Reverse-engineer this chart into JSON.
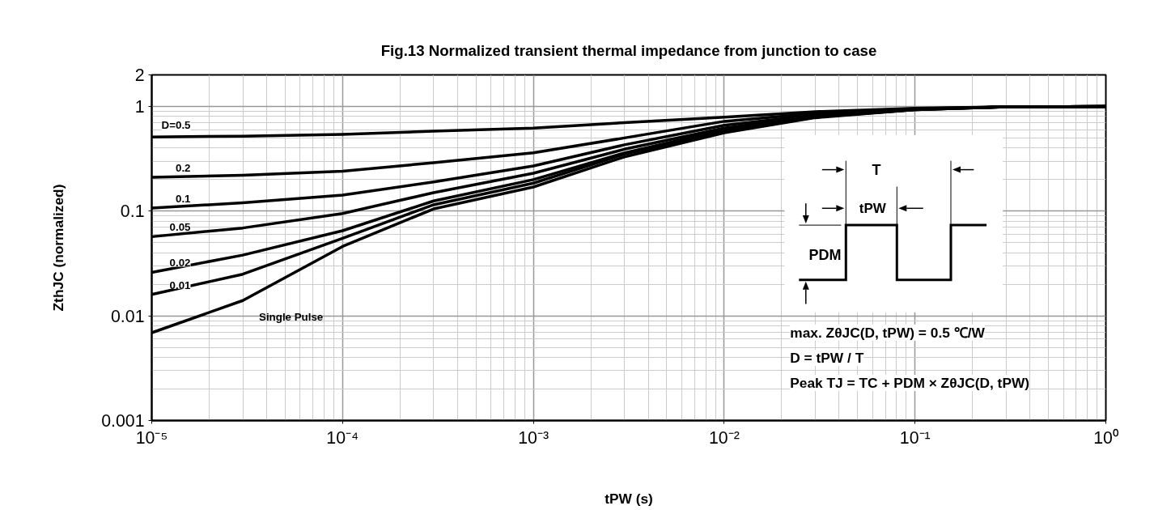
{
  "chart_data": {
    "type": "line",
    "title": "Fig.13 Normalized transient thermal impedance from junction to case",
    "xlabel": "tPW (s)",
    "ylabel": "ZthJC (normalized)",
    "x": [
      1e-05,
      3e-05,
      0.0001,
      0.0003,
      0.001,
      0.003,
      0.01,
      0.03,
      0.1,
      0.3,
      1
    ],
    "series": [
      {
        "name": "D=0.5",
        "color": "#000000",
        "values": [
          0.51,
          0.52,
          0.54,
          0.58,
          0.62,
          0.7,
          0.79,
          0.89,
          0.96,
          0.99,
          1.0
        ]
      },
      {
        "name": "0.2",
        "color": "#000000",
        "values": [
          0.21,
          0.22,
          0.24,
          0.29,
          0.36,
          0.5,
          0.72,
          0.86,
          0.95,
          0.99,
          1.0
        ]
      },
      {
        "name": "0.1",
        "color": "#000000",
        "values": [
          0.107,
          0.12,
          0.142,
          0.19,
          0.27,
          0.43,
          0.66,
          0.83,
          0.94,
          0.99,
          1.0
        ]
      },
      {
        "name": "0.05",
        "color": "#000000",
        "values": [
          0.057,
          0.069,
          0.095,
          0.15,
          0.23,
          0.39,
          0.62,
          0.81,
          0.94,
          0.99,
          1.0
        ]
      },
      {
        "name": "0.02",
        "color": "#000000",
        "values": [
          0.026,
          0.038,
          0.065,
          0.125,
          0.2,
          0.36,
          0.6,
          0.8,
          0.93,
          0.99,
          1.0
        ]
      },
      {
        "name": "0.01",
        "color": "#000000",
        "values": [
          0.016,
          0.025,
          0.055,
          0.115,
          0.185,
          0.35,
          0.58,
          0.79,
          0.93,
          0.99,
          1.0
        ]
      },
      {
        "name": "Single Pulse",
        "color": "#000000",
        "values": [
          0.0069,
          0.014,
          0.046,
          0.105,
          0.17,
          0.33,
          0.56,
          0.78,
          0.93,
          0.99,
          1.0
        ]
      }
    ],
    "log": "xy",
    "xlim": [
      1e-05,
      1
    ],
    "xticks": [
      {
        "value": 1e-05,
        "label": "10⁻⁵"
      },
      {
        "value": 0.0001,
        "label": "10⁻⁴"
      },
      {
        "value": 0.001,
        "label": "10⁻³"
      },
      {
        "value": 0.01,
        "label": "10⁻²"
      },
      {
        "value": 0.1,
        "label": "10⁻¹"
      },
      {
        "value": 1,
        "label": "10⁰"
      }
    ],
    "ylim": [
      0.001,
      2
    ],
    "yticks": [
      0.001,
      0.01,
      0.1,
      1,
      2
    ],
    "grid": true,
    "legend": false,
    "line_style": "solid",
    "marker": "none",
    "annotations": [
      "T",
      "tPW",
      "PDM",
      "max. ZθJC(D, tPW) = 0.5 ℃/W",
      "D = tPW / T",
      "Peak TJ = TC + PDM × ZθJC(D, tPW)"
    ]
  }
}
